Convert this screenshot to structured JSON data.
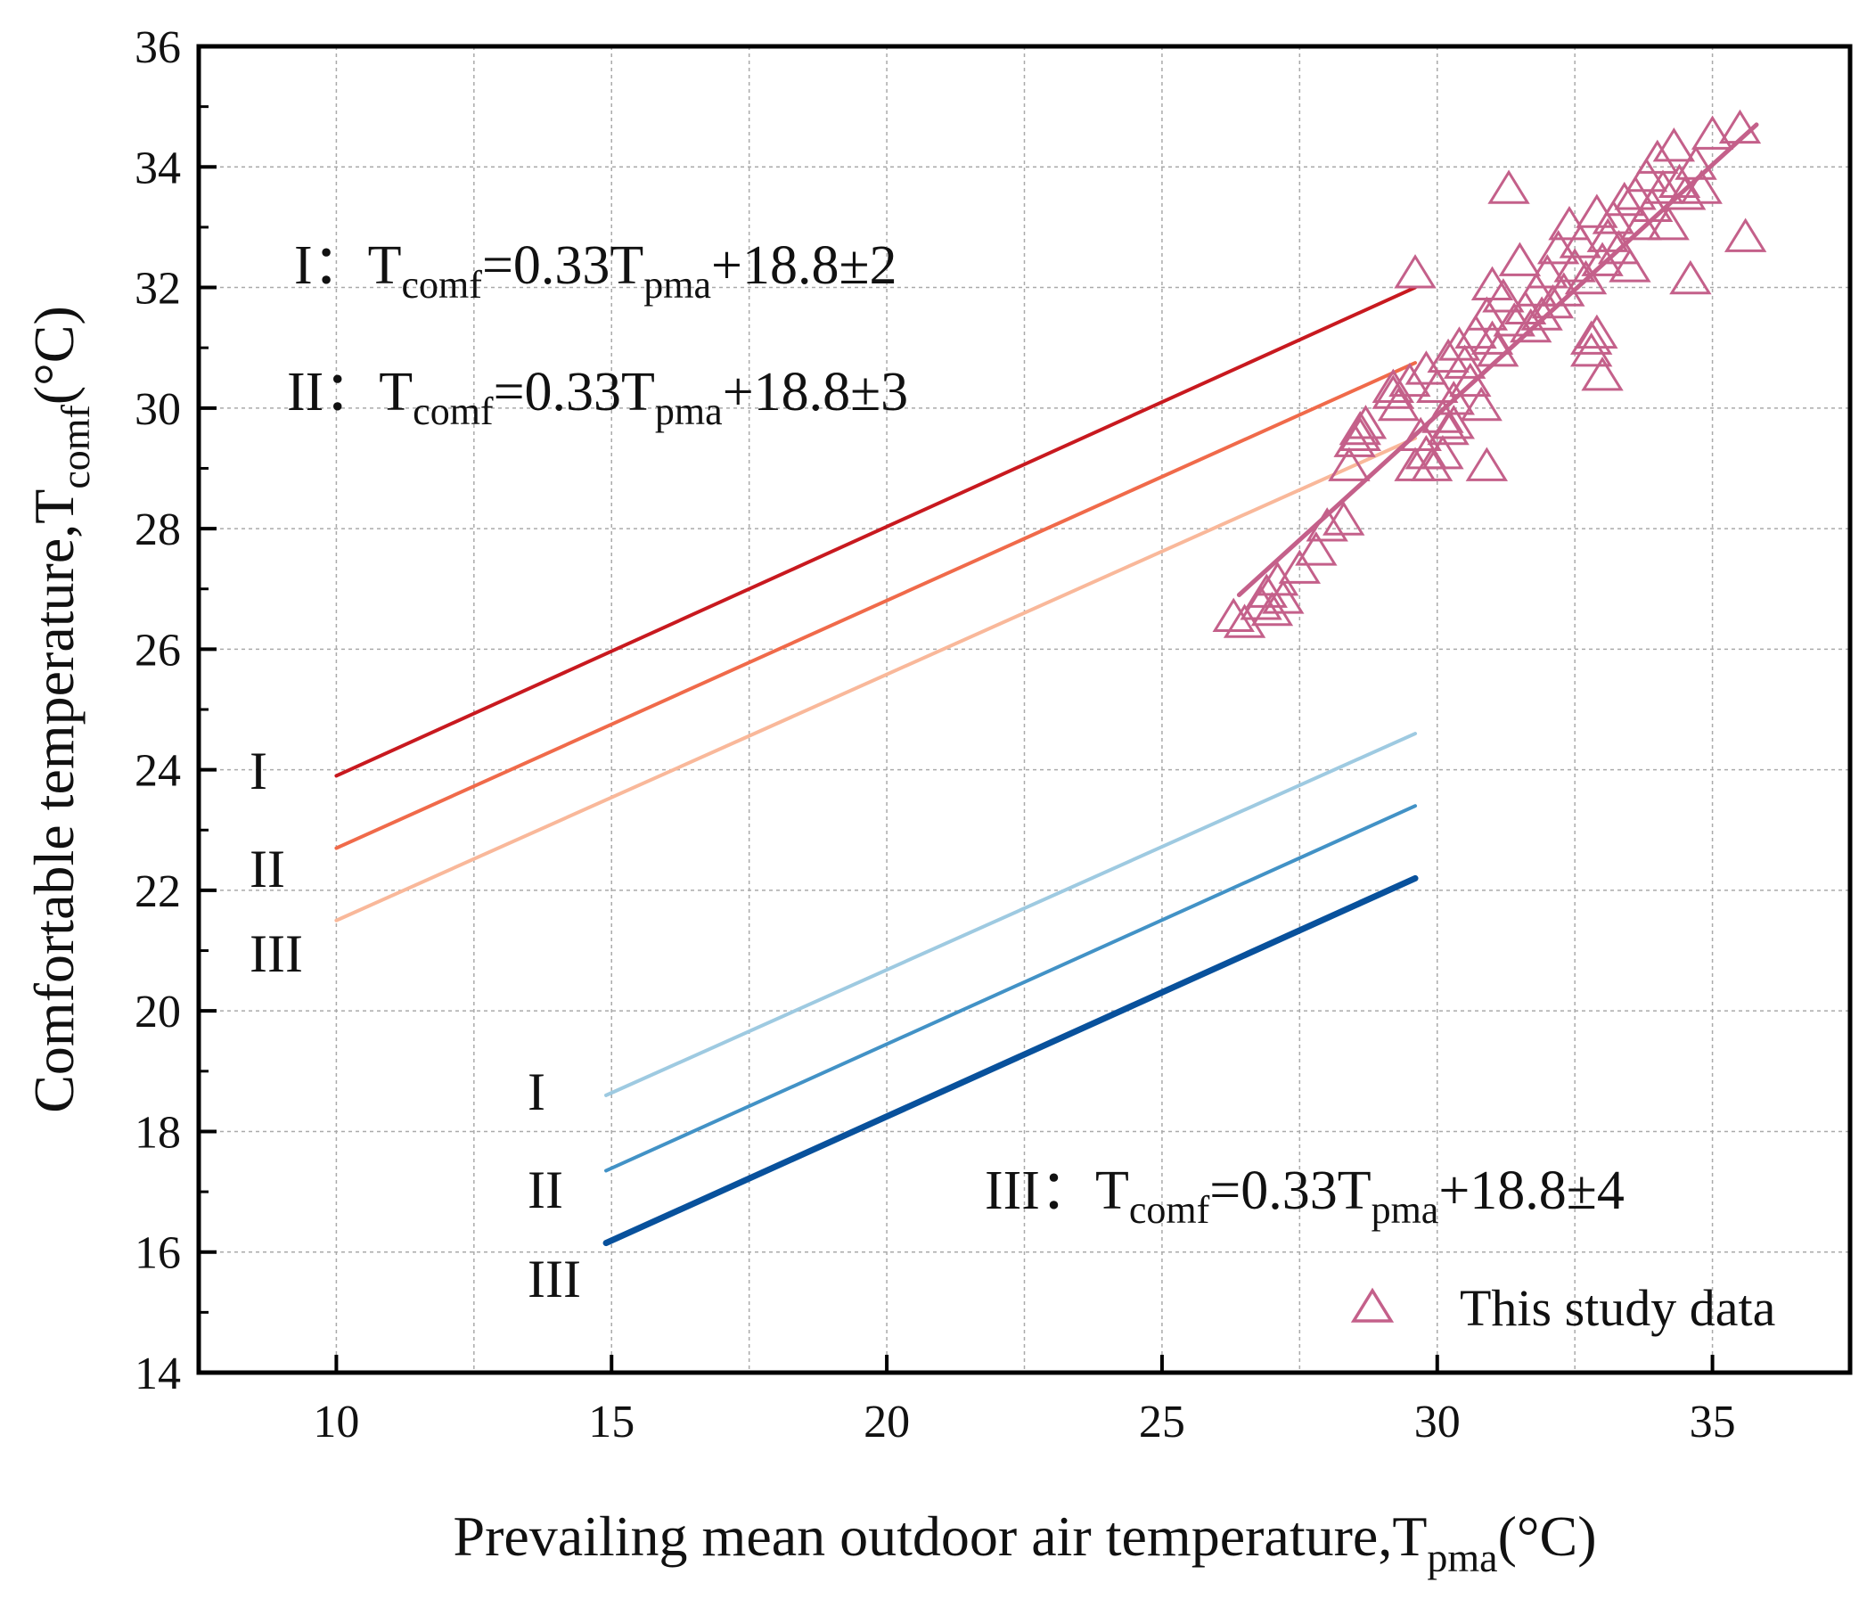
{
  "chart_data": {
    "type": "scatter",
    "x_axis": {
      "label": "Prevailing mean outdoor air temperature,T",
      "label_sub": "pma",
      "label_suffix": "(°C)",
      "range": [
        7.5,
        37.5
      ],
      "ticks": [
        10,
        15,
        20,
        25,
        30,
        35
      ]
    },
    "y_axis": {
      "label": "Comfortable temperature,T",
      "label_sub": "comf",
      "label_suffix": "(°C)",
      "range": [
        14,
        36
      ],
      "ticks": [
        14,
        16,
        18,
        20,
        22,
        24,
        26,
        28,
        30,
        32,
        34,
        36
      ]
    },
    "grid": true,
    "equations": [
      {
        "prefix": "I：",
        "t": "T",
        "t_sub": "comf",
        "mid": "=0.33T",
        "mid_sub": "pma",
        "suffix": "+18.8±2"
      },
      {
        "prefix": "II：",
        "t": "T",
        "t_sub": "comf",
        "mid": "=0.33T",
        "mid_sub": "pma",
        "suffix": "+18.8±3"
      },
      {
        "prefix": "III：",
        "t": "T",
        "t_sub": "comf",
        "mid": "=0.33T",
        "mid_sub": "pma",
        "suffix": "+18.8±4"
      }
    ],
    "band_labels": {
      "upper": [
        "I",
        "II",
        "III"
      ],
      "lower": [
        "I",
        "II",
        "III"
      ]
    },
    "band_lines": [
      {
        "name": "I upper",
        "x": [
          10,
          29.6
        ],
        "y": [
          23.9,
          32.0
        ],
        "color": "#c8191f",
        "width": 4
      },
      {
        "name": "II upper",
        "x": [
          10,
          29.6
        ],
        "y": [
          22.7,
          30.75
        ],
        "color": "#f06a4a",
        "width": 4
      },
      {
        "name": "III upper",
        "x": [
          10,
          29.6
        ],
        "y": [
          21.5,
          29.5
        ],
        "color": "#f9b89a",
        "width": 4
      },
      {
        "name": "I lower",
        "x": [
          14.9,
          29.6
        ],
        "y": [
          18.6,
          24.6
        ],
        "color": "#9ecae1",
        "width": 4
      },
      {
        "name": "II lower",
        "x": [
          14.9,
          29.6
        ],
        "y": [
          17.35,
          23.4
        ],
        "color": "#4292c6",
        "width": 4
      },
      {
        "name": "III lower",
        "x": [
          14.9,
          29.6
        ],
        "y": [
          16.15,
          22.2
        ],
        "color": "#08519c",
        "width": 7
      }
    ],
    "fit_line": {
      "name": "fit",
      "x": [
        26.4,
        35.8
      ],
      "y": [
        26.9,
        34.7
      ],
      "color": "#c4608a"
    },
    "series": [
      {
        "name": "This study data",
        "marker": "triangle",
        "color": "#c4608a",
        "x": [
          26.3,
          26.5,
          26.8,
          26.9,
          27.0,
          27.1,
          27.2,
          27.5,
          27.8,
          28.0,
          28.3,
          28.4,
          28.5,
          28.6,
          28.6,
          28.7,
          29.2,
          29.3,
          29.5,
          29.6,
          29.7,
          29.8,
          29.8,
          29.9,
          30.0,
          30.1,
          30.1,
          30.2,
          30.2,
          30.3,
          30.3,
          30.4,
          30.5,
          30.6,
          30.7,
          30.8,
          30.9,
          31.0,
          31.0,
          31.1,
          31.2,
          31.3,
          31.4,
          31.5,
          31.6,
          31.7,
          31.8,
          31.9,
          32.0,
          32.1,
          32.2,
          32.3,
          32.4,
          32.5,
          32.6,
          32.7,
          32.8,
          32.9,
          33.0,
          33.0,
          33.1,
          33.2,
          33.3,
          33.4,
          33.5,
          33.6,
          33.7,
          33.8,
          33.9,
          34.0,
          34.1,
          34.2,
          34.3,
          34.4,
          34.5,
          34.6,
          34.7,
          34.8,
          35.0,
          35.5,
          35.6,
          29.6,
          30.9,
          32.8,
          32.9,
          29.2
        ],
        "y": [
          26.5,
          26.4,
          26.7,
          26.9,
          26.6,
          27.1,
          26.8,
          27.3,
          27.6,
          28.0,
          28.1,
          29.0,
          29.4,
          29.6,
          29.5,
          29.7,
          30.2,
          30.0,
          30.4,
          29.0,
          29.5,
          30.6,
          29.2,
          29.0,
          30.3,
          29.8,
          29.2,
          29.6,
          30.8,
          30.1,
          29.7,
          31.0,
          30.7,
          30.4,
          31.2,
          30.0,
          31.5,
          31.1,
          32.0,
          30.9,
          31.8,
          33.6,
          31.4,
          32.4,
          31.6,
          31.3,
          31.9,
          31.5,
          32.2,
          31.7,
          32.6,
          31.9,
          33.0,
          32.3,
          32.7,
          32.1,
          31.1,
          33.2,
          32.4,
          30.5,
          32.8,
          33.1,
          32.6,
          33.4,
          32.3,
          33.5,
          33.0,
          33.8,
          33.3,
          34.1,
          33.6,
          33.0,
          34.3,
          33.7,
          33.5,
          32.1,
          34.0,
          33.6,
          34.5,
          34.6,
          32.8,
          32.2,
          29.0,
          30.9,
          31.2,
          30.3
        ]
      }
    ],
    "legend": {
      "label": "This study data",
      "position": "bottom-right"
    }
  }
}
